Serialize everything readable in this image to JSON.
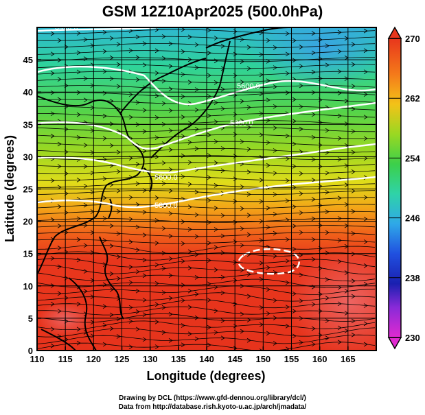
{
  "title": "GSM 12Z10Apr2025 (500.0hPa)",
  "credits": {
    "line1": "Drawing by DCL (https://www.gfd-dennou.org/library/dcl/)",
    "line2": "Data from http://database.rish.kyoto-u.ac.jp/arch/jmadata/"
  },
  "axes": {
    "xlabel": "Longitude (degrees)",
    "ylabel": "Latitude  (degrees)",
    "xlim": [
      110,
      170
    ],
    "ylim": [
      0,
      50
    ],
    "xticks": [
      "110",
      "115",
      "120",
      "125",
      "130",
      "135",
      "140",
      "145",
      "150",
      "155",
      "160",
      "165"
    ],
    "yticks": [
      "0",
      "5",
      "10",
      "15",
      "20",
      "25",
      "30",
      "35",
      "40",
      "45"
    ]
  },
  "colorbar": {
    "range": [
      230,
      270
    ],
    "labels": [
      "270",
      "262",
      "254",
      "246",
      "238",
      "230"
    ],
    "colormap": "purple-blue-cyan-green-yellow-orange-red"
  },
  "contours": {
    "color": "#ffffff",
    "labels": [
      "5400.0",
      "5600.0",
      "5800.0",
      "5600.0",
      "5800.0"
    ]
  },
  "chart_data": {
    "type": "heatmap",
    "title": "GSM 12Z10Apr2025 (500.0hPa)",
    "xlabel": "Longitude (degrees)",
    "ylabel": "Latitude  (degrees)",
    "xlim": [
      110,
      170
    ],
    "ylim": [
      0,
      50
    ],
    "colorbar_range": [
      230,
      270
    ],
    "grid": true,
    "overlays": [
      "temperature shading",
      "geopotential height contours",
      "wind streamlines",
      "coastlines"
    ]
  }
}
